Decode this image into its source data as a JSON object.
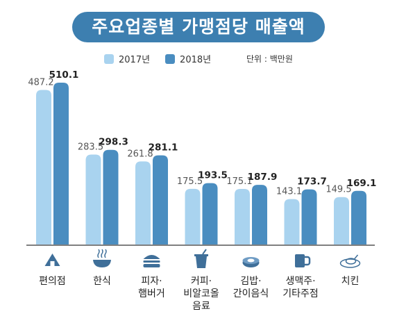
{
  "title": "주요업종별 가맹점당 매출액",
  "unit_label": "단위 : 백만원",
  "colors": {
    "title_bg": "#3d7fb0",
    "series_2017": "#a9d3ef",
    "series_2018": "#4a8dc0",
    "axis": "#555555",
    "icon": "#3f6f99"
  },
  "chart_data": {
    "type": "bar",
    "title": "주요업종별 가맹점당 매출액",
    "ylabel": "",
    "xlabel": "",
    "ylim": [
      0,
      560
    ],
    "grid": false,
    "legend_position": "top",
    "categories": [
      "편의점",
      "한식",
      "피자·햄버거",
      "커피·비알코올음료",
      "김밥·간이음식",
      "생맥주·기타주점",
      "치킨"
    ],
    "category_lines": [
      [
        "편의점"
      ],
      [
        "한식"
      ],
      [
        "피자·",
        "햄버거"
      ],
      [
        "커피·",
        "비알코올",
        "음료"
      ],
      [
        "김밥·",
        "간이음식"
      ],
      [
        "생맥주·",
        "기타주점"
      ],
      [
        "치킨"
      ]
    ],
    "category_icons": [
      "convenience-store-icon",
      "korean-food-bowl-icon",
      "burger-icon",
      "coffee-cup-icon",
      "gimbap-icon",
      "beer-mug-icon",
      "chicken-plate-icon"
    ],
    "series": [
      {
        "name": "2017년",
        "values": [
          487.2,
          283.5,
          261.8,
          175.5,
          175.1,
          143.1,
          149.5
        ],
        "labels": [
          "487.2",
          "283.5",
          "261.8",
          "175.5",
          "175.1",
          "143.1",
          "149.5"
        ]
      },
      {
        "name": "2018년",
        "values": [
          510.1,
          298.3,
          281.1,
          193.5,
          187.9,
          173.7,
          169.1
        ],
        "labels": [
          "510.1",
          "298.3",
          "281.1",
          "193.5",
          "187.9",
          "173.7",
          "169.1"
        ]
      }
    ]
  }
}
